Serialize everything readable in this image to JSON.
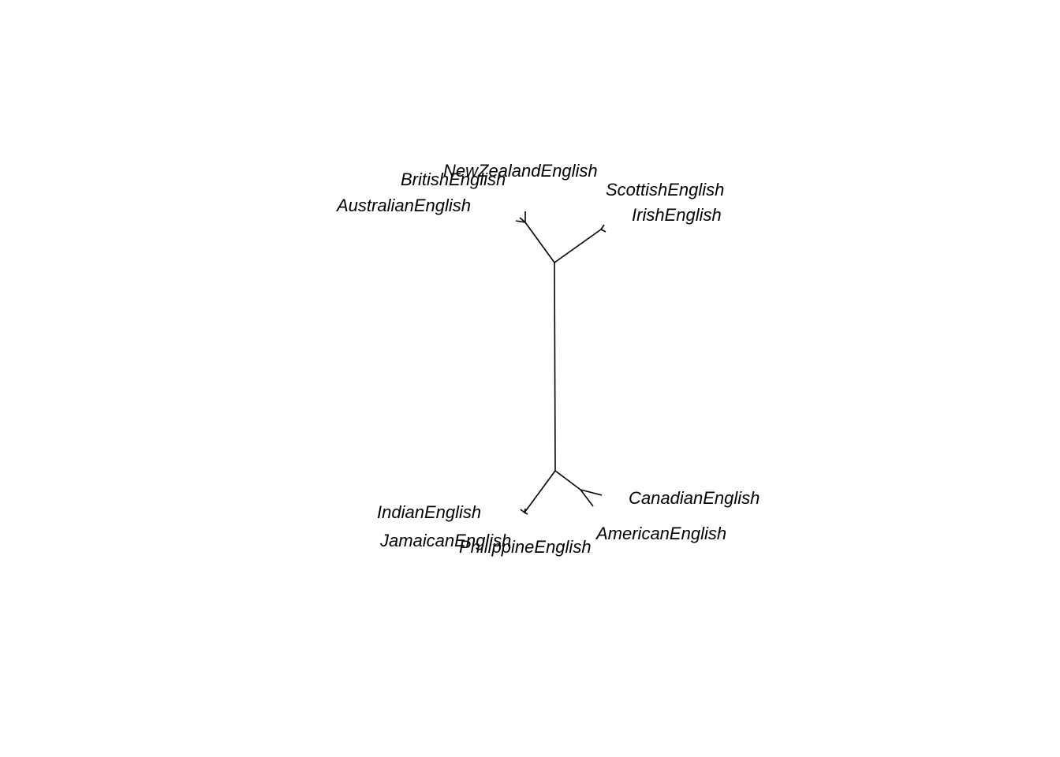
{
  "diagram": {
    "type": "unrooted-tree",
    "line_color": "#000000",
    "label_color": "#000000",
    "clusters": [
      {
        "name": "upper-left",
        "tips": [
          "NewZealandEnglish",
          "BritishEnglish",
          "AustralianEnglish"
        ]
      },
      {
        "name": "upper-right",
        "tips": [
          "ScottishEnglish",
          "IrishEnglish"
        ]
      },
      {
        "name": "lower-left",
        "tips": [
          "IndianEnglish",
          "JamaicanEnglish",
          "PhilippineEnglish"
        ]
      },
      {
        "name": "lower-right",
        "tips": [
          "CanadianEnglish",
          "AmericanEnglish"
        ]
      }
    ],
    "labels": {
      "new_zealand": "NewZealandEnglish",
      "british": "BritishEnglish",
      "australian": "AustralianEnglish",
      "scottish": "ScottishEnglish",
      "irish": "IrishEnglish",
      "indian": "IndianEnglish",
      "jamaican": "JamaicanEnglish",
      "philippine": "PhilippineEnglish",
      "canadian": "CanadianEnglish",
      "american": "AmericanEnglish"
    }
  }
}
